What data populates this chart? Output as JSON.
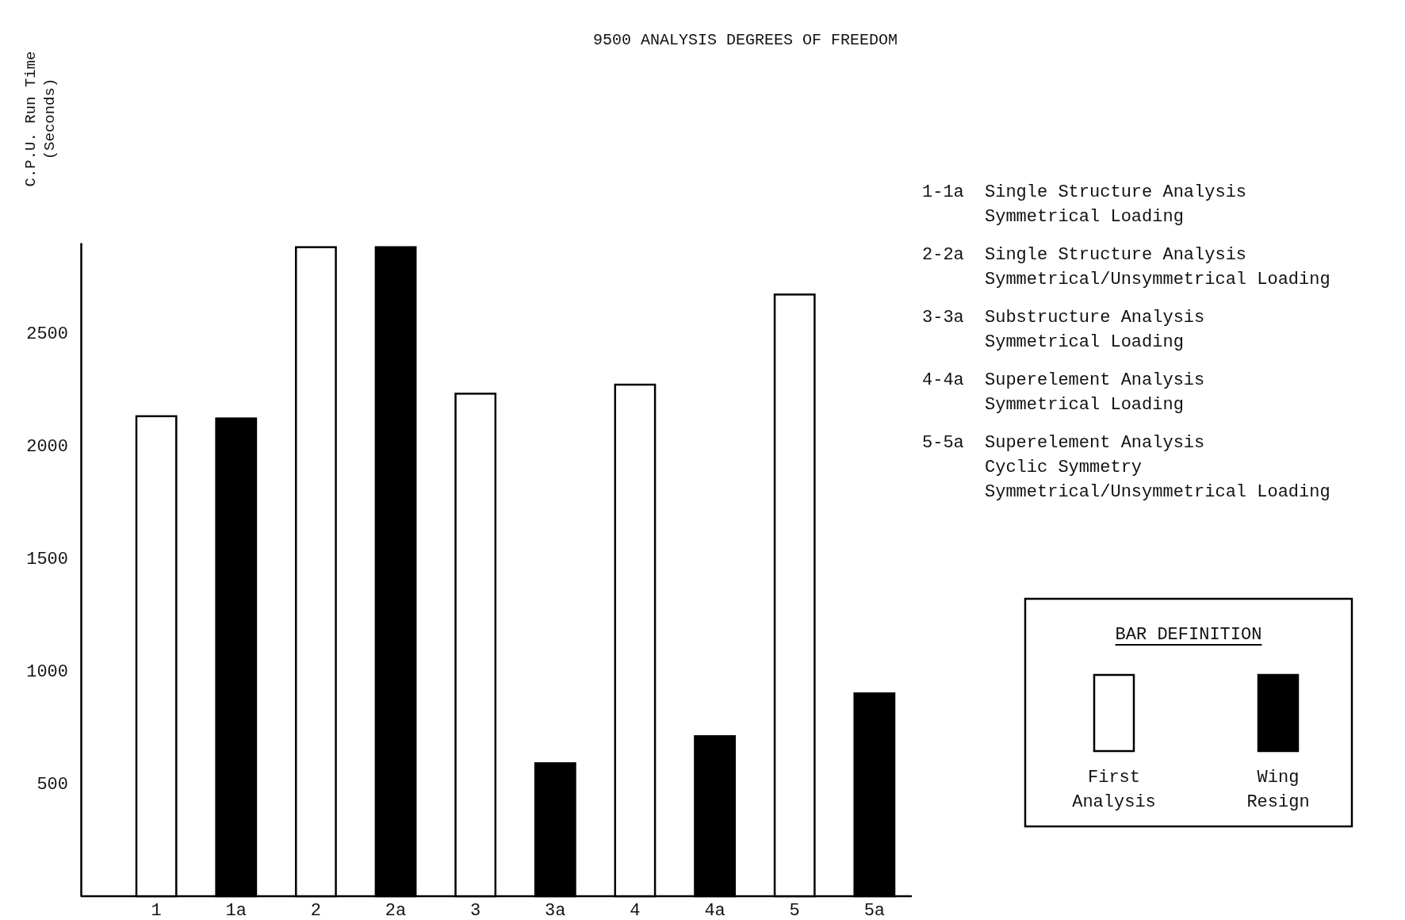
{
  "chart_data": {
    "type": "bar",
    "title": "9500 ANALYSIS DEGREES OF FREEDOM",
    "ylabel": "C.P.U. Run Time (Seconds)",
    "categories": [
      "1",
      "1a",
      "2",
      "2a",
      "3",
      "3a",
      "4",
      "4a",
      "5",
      "5a"
    ],
    "series": [
      {
        "name": "First Analysis",
        "color": "#ffffff",
        "values": [
          2130,
          null,
          2880,
          null,
          2230,
          null,
          2270,
          null,
          2670,
          null
        ]
      },
      {
        "name": "Wing Resign",
        "color": "#000000",
        "values": [
          null,
          2120,
          null,
          2880,
          null,
          590,
          null,
          710,
          null,
          900
        ]
      }
    ],
    "ylim": [
      0,
      2900
    ],
    "yticks": [
      500,
      1000,
      1500,
      2000,
      2500
    ],
    "grid": false,
    "legend": "right",
    "legend_title": "BAR DEFINITION",
    "annotations": [
      "1-1a Single Structure Analysis\nSymmetrical Loading",
      "2-2a Single Structure Analysis\nSymmetrical/Unsymmetrical Loading",
      "3-3a Substructure Analysis\nSymmetrical Loading",
      "4-4a Superelement Analysis\nSymmetrical Loading",
      "5-5a Superelement Analysis\nCyclic Symmetry\nSymmetrical/Unsymmetrical Loading"
    ]
  }
}
